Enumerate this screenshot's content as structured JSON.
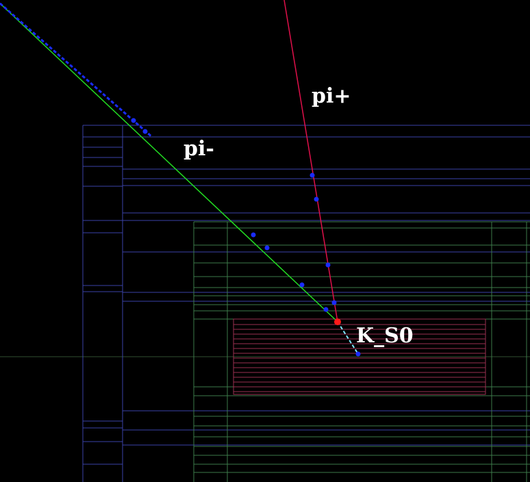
{
  "tracks": [
    {
      "label": "pi+"
    },
    {
      "label": "pi-"
    },
    {
      "label": "K_S0"
    }
  ]
}
